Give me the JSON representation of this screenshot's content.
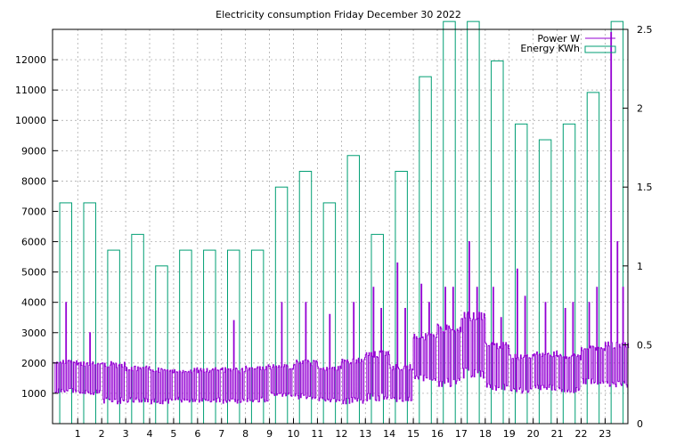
{
  "chart_data": {
    "type": "bar",
    "title": "Electricity consumption Friday December 30 2022",
    "xlabel": "",
    "ylabel": "",
    "y2label": "",
    "x_ticks": [
      "1",
      "2",
      "3",
      "4",
      "5",
      "6",
      "7",
      "8",
      "9",
      "10",
      "11",
      "12",
      "13",
      "14",
      "15",
      "16",
      "17",
      "18",
      "19",
      "20",
      "21",
      "22",
      "23"
    ],
    "xlim": [
      -0.05,
      23.95
    ],
    "ylim": [
      0,
      13000
    ],
    "y_ticks": [
      1000,
      2000,
      3000,
      4000,
      5000,
      6000,
      7000,
      8000,
      9000,
      10000,
      11000,
      12000
    ],
    "y2lim": [
      0,
      2.5
    ],
    "y2_ticks": [
      "0",
      "0.5",
      "1",
      "1.5",
      "2",
      "2.5"
    ],
    "grid": true,
    "legend_position": "top-right",
    "colors": {
      "power": "#9400d3",
      "energy": "#009e73",
      "grid": "#a0a0a0"
    },
    "series": [
      {
        "name": "Power W",
        "kind": "line",
        "axis": "y1",
        "hour_profiles": [
          {
            "low": 1000,
            "high": 2100,
            "spikes": [
              4000
            ]
          },
          {
            "low": 950,
            "high": 2050,
            "spikes": [
              3000
            ]
          },
          {
            "low": 650,
            "high": 2050,
            "spikes": []
          },
          {
            "low": 700,
            "high": 1900,
            "spikes": []
          },
          {
            "low": 650,
            "high": 1850,
            "spikes": []
          },
          {
            "low": 700,
            "high": 1850,
            "spikes": []
          },
          {
            "low": 700,
            "high": 1850,
            "spikes": []
          },
          {
            "low": 650,
            "high": 1850,
            "spikes": [
              3400
            ]
          },
          {
            "low": 700,
            "high": 1950,
            "spikes": []
          },
          {
            "low": 900,
            "high": 1950,
            "spikes": [
              4000
            ]
          },
          {
            "low": 800,
            "high": 2100,
            "spikes": [
              4000
            ]
          },
          {
            "low": 700,
            "high": 1900,
            "spikes": [
              3600
            ]
          },
          {
            "low": 650,
            "high": 2200,
            "spikes": [
              4000
            ]
          },
          {
            "low": 750,
            "high": 2400,
            "spikes": [
              4500,
              3800
            ]
          },
          {
            "low": 700,
            "high": 1950,
            "spikes": [
              5300,
              3800
            ]
          },
          {
            "low": 1400,
            "high": 3000,
            "spikes": [
              4600,
              4000
            ]
          },
          {
            "low": 1200,
            "high": 3300,
            "spikes": [
              4500,
              4500
            ]
          },
          {
            "low": 1500,
            "high": 3700,
            "spikes": [
              6000,
              4500
            ]
          },
          {
            "low": 1100,
            "high": 2700,
            "spikes": [
              4500,
              3500
            ]
          },
          {
            "low": 1000,
            "high": 2300,
            "spikes": [
              5100,
              4200
            ]
          },
          {
            "low": 1100,
            "high": 2400,
            "spikes": [
              4000
            ]
          },
          {
            "low": 1000,
            "high": 2300,
            "spikes": [
              3800,
              4000
            ]
          },
          {
            "low": 1300,
            "high": 2600,
            "spikes": [
              4000,
              4500
            ]
          },
          {
            "low": 1200,
            "high": 2700,
            "spikes": [
              12900,
              6000,
              4500
            ]
          }
        ]
      },
      {
        "name": "Energy KWh",
        "kind": "boxes",
        "axis": "y2",
        "hours": [
          0,
          1,
          2,
          3,
          4,
          5,
          6,
          7,
          8,
          9,
          10,
          11,
          12,
          13,
          14,
          15,
          16,
          17,
          18,
          19,
          20,
          21,
          22,
          23
        ],
        "values": [
          1.4,
          1.4,
          1.1,
          1.2,
          1.0,
          1.1,
          1.1,
          1.1,
          1.1,
          1.5,
          1.6,
          1.4,
          1.7,
          1.2,
          1.6,
          2.2,
          2.55,
          2.55,
          2.3,
          1.9,
          1.8,
          1.9,
          2.1,
          2.55
        ]
      }
    ]
  }
}
